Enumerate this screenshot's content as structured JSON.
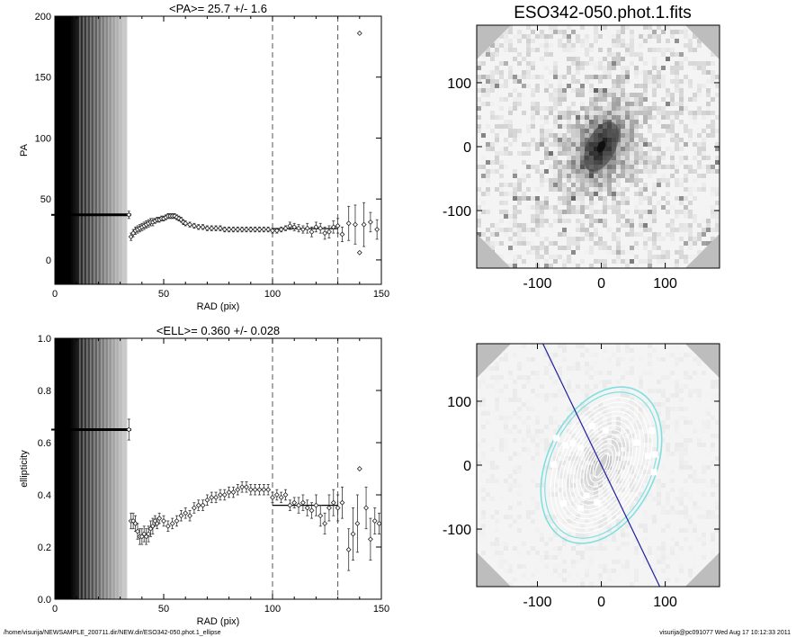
{
  "chart_data": [
    {
      "type": "scatter",
      "title": "<PA>=  25.7 +/-   1.6",
      "xlabel": "RAD (pix)",
      "ylabel": "PA",
      "xlim": [
        0,
        150
      ],
      "ylim": [
        -20,
        200
      ],
      "x_ticks": [
        0,
        50,
        100,
        150
      ],
      "y_ticks": [
        0,
        50,
        100,
        150,
        200
      ],
      "vlines": [
        100,
        130
      ],
      "hline": {
        "y": 25.7,
        "x": [
          100,
          130
        ]
      },
      "const_segment": {
        "y": 37,
        "x": [
          0,
          35
        ]
      },
      "points": [
        {
          "x": 34,
          "y": 37,
          "e": 3
        },
        {
          "x": 35,
          "y": 19,
          "e": 3
        },
        {
          "x": 36,
          "y": 22,
          "e": 3
        },
        {
          "x": 37,
          "y": 24,
          "e": 3
        },
        {
          "x": 38,
          "y": 25,
          "e": 3
        },
        {
          "x": 39,
          "y": 26,
          "e": 3
        },
        {
          "x": 40,
          "y": 27,
          "e": 3
        },
        {
          "x": 41,
          "y": 28,
          "e": 3
        },
        {
          "x": 42,
          "y": 29,
          "e": 3
        },
        {
          "x": 43,
          "y": 30,
          "e": 3
        },
        {
          "x": 44,
          "y": 31,
          "e": 3
        },
        {
          "x": 45,
          "y": 31,
          "e": 3
        },
        {
          "x": 46,
          "y": 32,
          "e": 2
        },
        {
          "x": 47,
          "y": 33,
          "e": 2
        },
        {
          "x": 48,
          "y": 33,
          "e": 2
        },
        {
          "x": 49,
          "y": 34,
          "e": 2
        },
        {
          "x": 50,
          "y": 34,
          "e": 2
        },
        {
          "x": 51,
          "y": 35,
          "e": 2
        },
        {
          "x": 52,
          "y": 36,
          "e": 2
        },
        {
          "x": 53,
          "y": 36,
          "e": 2
        },
        {
          "x": 54,
          "y": 36,
          "e": 2
        },
        {
          "x": 55,
          "y": 36,
          "e": 2
        },
        {
          "x": 56,
          "y": 35,
          "e": 2
        },
        {
          "x": 57,
          "y": 34,
          "e": 2
        },
        {
          "x": 58,
          "y": 33,
          "e": 2
        },
        {
          "x": 59,
          "y": 31,
          "e": 2
        },
        {
          "x": 60,
          "y": 30,
          "e": 2
        },
        {
          "x": 62,
          "y": 29,
          "e": 2
        },
        {
          "x": 64,
          "y": 28,
          "e": 2
        },
        {
          "x": 66,
          "y": 27,
          "e": 2
        },
        {
          "x": 68,
          "y": 27,
          "e": 2
        },
        {
          "x": 70,
          "y": 26,
          "e": 2
        },
        {
          "x": 72,
          "y": 26,
          "e": 2
        },
        {
          "x": 74,
          "y": 26,
          "e": 2
        },
        {
          "x": 76,
          "y": 26,
          "e": 2
        },
        {
          "x": 78,
          "y": 25,
          "e": 2
        },
        {
          "x": 80,
          "y": 25,
          "e": 2
        },
        {
          "x": 82,
          "y": 25,
          "e": 2
        },
        {
          "x": 84,
          "y": 25,
          "e": 2
        },
        {
          "x": 86,
          "y": 25,
          "e": 2
        },
        {
          "x": 88,
          "y": 25,
          "e": 2
        },
        {
          "x": 90,
          "y": 25,
          "e": 2
        },
        {
          "x": 92,
          "y": 25,
          "e": 2
        },
        {
          "x": 94,
          "y": 25,
          "e": 2
        },
        {
          "x": 96,
          "y": 25,
          "e": 2
        },
        {
          "x": 98,
          "y": 25,
          "e": 2
        },
        {
          "x": 100,
          "y": 24,
          "e": 2
        },
        {
          "x": 102,
          "y": 24,
          "e": 2
        },
        {
          "x": 104,
          "y": 25,
          "e": 2
        },
        {
          "x": 106,
          "y": 26,
          "e": 2
        },
        {
          "x": 108,
          "y": 28,
          "e": 3
        },
        {
          "x": 110,
          "y": 27,
          "e": 3
        },
        {
          "x": 112,
          "y": 26,
          "e": 3
        },
        {
          "x": 114,
          "y": 25,
          "e": 3
        },
        {
          "x": 116,
          "y": 26,
          "e": 4
        },
        {
          "x": 118,
          "y": 23,
          "e": 4
        },
        {
          "x": 120,
          "y": 27,
          "e": 4
        },
        {
          "x": 122,
          "y": 26,
          "e": 4
        },
        {
          "x": 124,
          "y": 22,
          "e": 5
        },
        {
          "x": 126,
          "y": 23,
          "e": 5
        },
        {
          "x": 128,
          "y": 27,
          "e": 5
        },
        {
          "x": 130,
          "y": 28,
          "e": 6
        },
        {
          "x": 132,
          "y": 21,
          "e": 6
        },
        {
          "x": 135,
          "y": 30,
          "e": 14
        },
        {
          "x": 138,
          "y": 29,
          "e": 16
        },
        {
          "x": 140,
          "y": 6,
          "e": 0
        },
        {
          "x": 142,
          "y": 29,
          "e": 18
        },
        {
          "x": 145,
          "y": 31,
          "e": 8
        },
        {
          "x": 148,
          "y": 25,
          "e": 8
        },
        {
          "x": 140,
          "y": 186,
          "e": 0
        }
      ]
    },
    {
      "type": "scatter",
      "title": "<ELL>= 0.360 +/-  0.028",
      "xlabel": "RAD (pix)",
      "ylabel": "ellipticity",
      "xlim": [
        0,
        150
      ],
      "ylim": [
        0,
        1
      ],
      "x_ticks": [
        0,
        50,
        100,
        150
      ],
      "y_ticks": [
        0.0,
        0.2,
        0.4,
        0.6,
        0.8,
        1.0
      ],
      "vlines": [
        100,
        130
      ],
      "hline": {
        "y": 0.36,
        "x": [
          100,
          130
        ]
      },
      "const_segment": {
        "y": 0.65,
        "x": [
          0,
          35
        ]
      },
      "points": [
        {
          "x": 34,
          "y": 0.65,
          "e": 0.04
        },
        {
          "x": 35,
          "y": 0.3,
          "e": 0.03
        },
        {
          "x": 36,
          "y": 0.3,
          "e": 0.03
        },
        {
          "x": 37,
          "y": 0.29,
          "e": 0.03
        },
        {
          "x": 38,
          "y": 0.26,
          "e": 0.03
        },
        {
          "x": 39,
          "y": 0.24,
          "e": 0.03
        },
        {
          "x": 40,
          "y": 0.24,
          "e": 0.03
        },
        {
          "x": 41,
          "y": 0.25,
          "e": 0.03
        },
        {
          "x": 42,
          "y": 0.24,
          "e": 0.03
        },
        {
          "x": 43,
          "y": 0.25,
          "e": 0.03
        },
        {
          "x": 44,
          "y": 0.27,
          "e": 0.03
        },
        {
          "x": 45,
          "y": 0.28,
          "e": 0.03
        },
        {
          "x": 46,
          "y": 0.3,
          "e": 0.02
        },
        {
          "x": 47,
          "y": 0.29,
          "e": 0.02
        },
        {
          "x": 48,
          "y": 0.31,
          "e": 0.02
        },
        {
          "x": 50,
          "y": 0.3,
          "e": 0.02
        },
        {
          "x": 52,
          "y": 0.28,
          "e": 0.02
        },
        {
          "x": 54,
          "y": 0.29,
          "e": 0.02
        },
        {
          "x": 56,
          "y": 0.3,
          "e": 0.02
        },
        {
          "x": 58,
          "y": 0.32,
          "e": 0.02
        },
        {
          "x": 60,
          "y": 0.33,
          "e": 0.02
        },
        {
          "x": 62,
          "y": 0.32,
          "e": 0.02
        },
        {
          "x": 64,
          "y": 0.35,
          "e": 0.02
        },
        {
          "x": 66,
          "y": 0.36,
          "e": 0.02
        },
        {
          "x": 68,
          "y": 0.36,
          "e": 0.02
        },
        {
          "x": 70,
          "y": 0.38,
          "e": 0.02
        },
        {
          "x": 72,
          "y": 0.39,
          "e": 0.02
        },
        {
          "x": 74,
          "y": 0.39,
          "e": 0.02
        },
        {
          "x": 76,
          "y": 0.4,
          "e": 0.02
        },
        {
          "x": 78,
          "y": 0.4,
          "e": 0.02
        },
        {
          "x": 80,
          "y": 0.41,
          "e": 0.02
        },
        {
          "x": 82,
          "y": 0.41,
          "e": 0.02
        },
        {
          "x": 84,
          "y": 0.42,
          "e": 0.02
        },
        {
          "x": 86,
          "y": 0.43,
          "e": 0.02
        },
        {
          "x": 88,
          "y": 0.43,
          "e": 0.02
        },
        {
          "x": 90,
          "y": 0.42,
          "e": 0.02
        },
        {
          "x": 92,
          "y": 0.42,
          "e": 0.02
        },
        {
          "x": 94,
          "y": 0.42,
          "e": 0.02
        },
        {
          "x": 96,
          "y": 0.42,
          "e": 0.02
        },
        {
          "x": 98,
          "y": 0.42,
          "e": 0.02
        },
        {
          "x": 100,
          "y": 0.39,
          "e": 0.02
        },
        {
          "x": 102,
          "y": 0.4,
          "e": 0.02
        },
        {
          "x": 104,
          "y": 0.39,
          "e": 0.02
        },
        {
          "x": 106,
          "y": 0.4,
          "e": 0.02
        },
        {
          "x": 108,
          "y": 0.36,
          "e": 0.02
        },
        {
          "x": 110,
          "y": 0.37,
          "e": 0.02
        },
        {
          "x": 112,
          "y": 0.36,
          "e": 0.03
        },
        {
          "x": 114,
          "y": 0.37,
          "e": 0.03
        },
        {
          "x": 116,
          "y": 0.35,
          "e": 0.03
        },
        {
          "x": 118,
          "y": 0.34,
          "e": 0.03
        },
        {
          "x": 120,
          "y": 0.36,
          "e": 0.04
        },
        {
          "x": 122,
          "y": 0.32,
          "e": 0.04
        },
        {
          "x": 124,
          "y": 0.29,
          "e": 0.04
        },
        {
          "x": 126,
          "y": 0.35,
          "e": 0.05
        },
        {
          "x": 128,
          "y": 0.37,
          "e": 0.05
        },
        {
          "x": 130,
          "y": 0.35,
          "e": 0.05
        },
        {
          "x": 132,
          "y": 0.37,
          "e": 0.06
        },
        {
          "x": 135,
          "y": 0.19,
          "e": 0.08
        },
        {
          "x": 137,
          "y": 0.25,
          "e": 0.1
        },
        {
          "x": 139,
          "y": 0.29,
          "e": 0.11
        },
        {
          "x": 140,
          "y": 0.5,
          "e": 0
        },
        {
          "x": 143,
          "y": 0.35,
          "e": 0.08
        },
        {
          "x": 145,
          "y": 0.23,
          "e": 0.08
        },
        {
          "x": 147,
          "y": 0.3,
          "e": 0.05
        },
        {
          "x": 149,
          "y": 0.29,
          "e": 0.04
        }
      ]
    },
    {
      "type": "heatmap",
      "title": "ESO342-050.phot.1.fits",
      "xlim": [
        -195,
        185
      ],
      "ylim": [
        -190,
        190
      ],
      "x_ticks": [
        -100,
        0,
        100
      ],
      "y_ticks": [
        -100,
        0,
        100
      ],
      "galaxy": {
        "center": [
          0,
          0
        ],
        "pa_deg": 25.7,
        "ellipticity": 0.36
      }
    },
    {
      "type": "heatmap",
      "title": "",
      "xlim": [
        -195,
        185
      ],
      "ylim": [
        -190,
        190
      ],
      "x_ticks": [
        -100,
        0,
        100
      ],
      "y_ticks": [
        -100,
        0,
        100
      ],
      "colors": {
        "contours": "#ffffff",
        "outer_contours": "#80e0e0",
        "major_axis": "#2020a0"
      },
      "galaxy": {
        "center": [
          0,
          0
        ],
        "pa_deg": 25.7,
        "ellipticity": 0.36
      }
    }
  ],
  "footer": {
    "left": "/home/visurija/NEWSAMPLE_200711.dir/NEW.dir/ESO342-050.phot.1_ellipse",
    "right": "visurija@pc091077  Wed Aug 17 10:12:33 2011"
  }
}
